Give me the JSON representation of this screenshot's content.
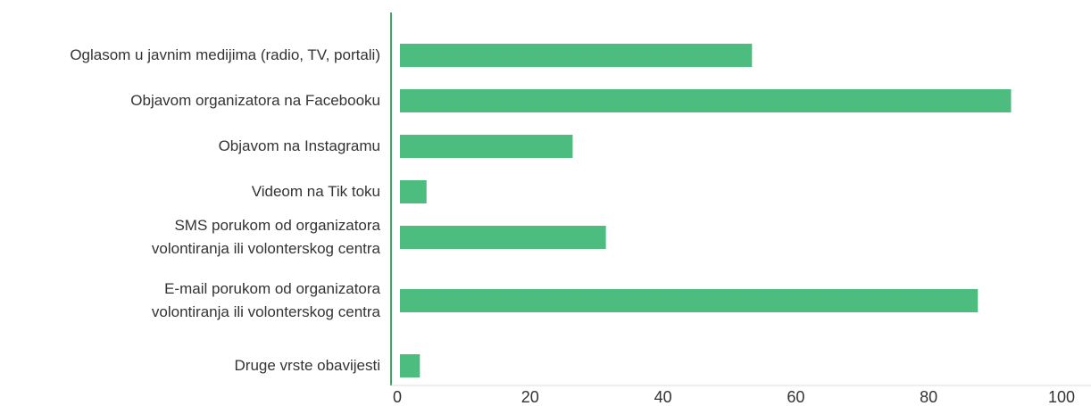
{
  "chart_data": {
    "type": "bar",
    "orientation": "horizontal",
    "categories": [
      "Oglasom u javnim medijima (radio, TV, portali)",
      "Objavom organizatora na Facebooku",
      "Objavom na Instagramu",
      "Videom na Tik toku",
      "SMS porukom od organizatora\nvolontiranja ili volonterskog centra",
      "E-mail porukom od organizatora\nvolontiranja ili volonterskog centra",
      "Druge vrste obavijesti"
    ],
    "values": [
      53,
      92,
      26,
      4,
      31,
      87,
      3
    ],
    "color": "#4dbd7f",
    "xlim": [
      0,
      100
    ],
    "xticks": [
      0,
      20,
      40,
      60,
      80,
      100
    ],
    "grid": false
  }
}
